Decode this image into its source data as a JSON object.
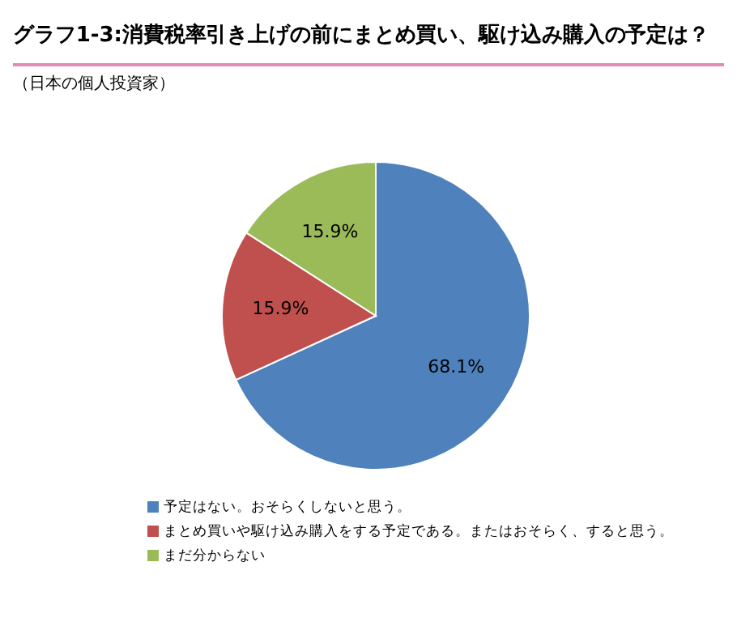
{
  "chart_data": {
    "type": "pie",
    "title": "グラフ1-3:消費税率引き上げの前にまとめ買い、駆け込み購入の予定は？",
    "subtitle": "（日本の個人投資家）",
    "categories": [
      "予定はない。おそらくしないと思う。",
      "まとめ買いや駆け込み購入をする予定である。またはおそらく、すると思う。",
      "まだ分からない"
    ],
    "values": [
      68.1,
      15.9,
      15.9
    ],
    "colors": [
      "#4f81bd",
      "#c0504d",
      "#9bbb59"
    ],
    "value_labels": [
      "68.1%",
      "15.9%",
      "15.9%"
    ],
    "legend": "bottom"
  }
}
